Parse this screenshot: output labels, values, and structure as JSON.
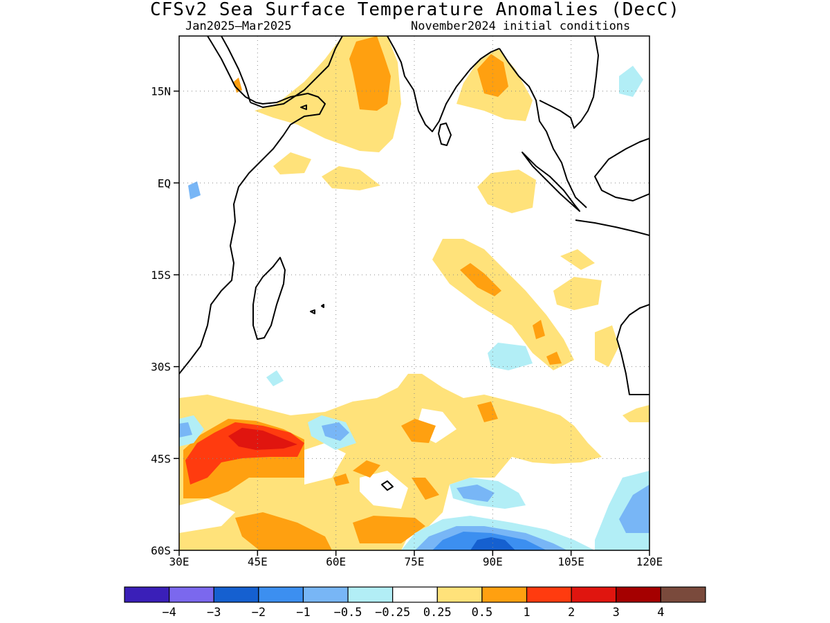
{
  "title": "CFSv2 Sea Surface Temperature Anomalies (DecC)",
  "subtitle_left": "Jan2025–Mar2025",
  "subtitle_right": "November2024 initial conditions",
  "map": {
    "lon_range": [
      30,
      120
    ],
    "lat_range": [
      -60,
      24
    ],
    "grid": true,
    "lat_ticks": [
      {
        "value": 15,
        "label": "15N"
      },
      {
        "value": 0,
        "label": "EQ"
      },
      {
        "value": -15,
        "label": "15S"
      },
      {
        "value": -30,
        "label": "30S"
      },
      {
        "value": -45,
        "label": "45S"
      },
      {
        "value": -60,
        "label": "60S"
      }
    ],
    "lon_ticks": [
      {
        "value": 30,
        "label": "30E"
      },
      {
        "value": 45,
        "label": "45E"
      },
      {
        "value": 60,
        "label": "60E"
      },
      {
        "value": 75,
        "label": "75E"
      },
      {
        "value": 90,
        "label": "90E"
      },
      {
        "value": 105,
        "label": "105E"
      },
      {
        "value": 120,
        "label": "120E"
      }
    ]
  },
  "colorbar": {
    "colors": [
      "#3a1fb8",
      "#7b68ee",
      "#1560d0",
      "#3c8ff0",
      "#78b6f6",
      "#b2eef6",
      "#ffffff",
      "#ffe27a",
      "#ffa010",
      "#ff3b0f",
      "#e0150f",
      "#a50000",
      "#7a4a3c"
    ],
    "labels": [
      "−4",
      "−3",
      "−2",
      "−1",
      "−0.5",
      "−0.25",
      "0.25",
      "0.5",
      "1",
      "2",
      "3",
      "4"
    ]
  },
  "colors": {
    "c025": "#ffe27a",
    "c05": "#ffa010",
    "c1": "#ff3b0f",
    "c2": "#e0150f",
    "cm025": "#b2eef6",
    "cm05": "#78b6f6",
    "cm1": "#3c8ff0",
    "cm2": "#1560d0"
  }
}
